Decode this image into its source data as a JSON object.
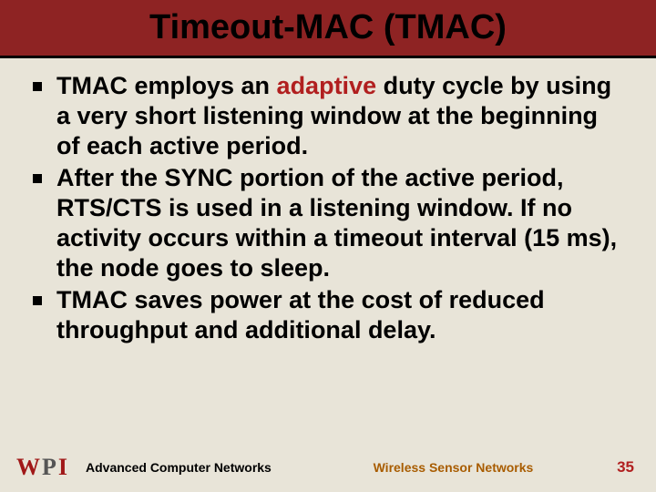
{
  "title": "Timeout-MAC (TMAC)",
  "bullets": [
    {
      "pre": "TMAC employs an ",
      "highlight": "adaptive",
      "post": " duty cycle by using a very short listening window at the beginning of each active period."
    },
    {
      "pre": "After the SYNC portion of the active period, RTS/CTS is used in a listening window. If no activity occurs within a timeout interval (15 ms), the node goes to sleep.",
      "highlight": "",
      "post": ""
    },
    {
      "pre": "TMAC saves power at the cost of reduced throughput and additional delay.",
      "highlight": "",
      "post": ""
    }
  ],
  "footer": {
    "left": "Advanced Computer Networks",
    "center": "Wireless Sensor Networks",
    "page": "35"
  },
  "logo": {
    "w": "W",
    "p": "P",
    "i": "I"
  },
  "colors": {
    "header_bg": "#8e2323",
    "slide_bg": "#e8e4d8",
    "accent_red": "#b11f1f",
    "footer_center": "#a85c00"
  }
}
